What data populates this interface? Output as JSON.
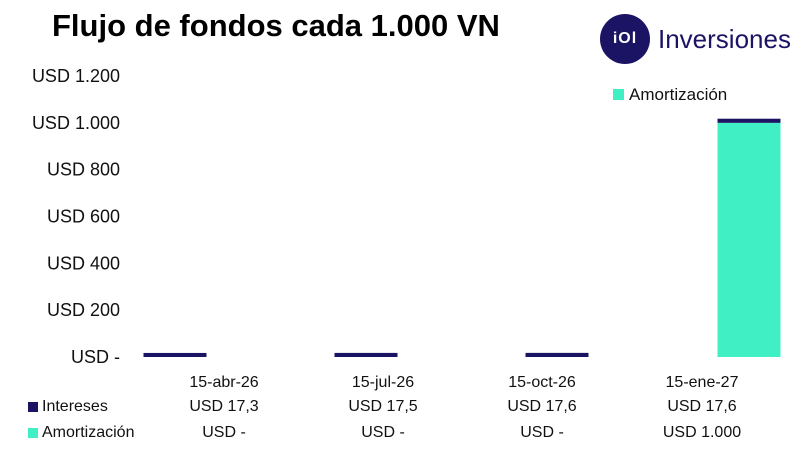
{
  "title": "Flujo de fondos cada 1.000 VN",
  "logo": {
    "mark": "iOl",
    "name": "Inversiones"
  },
  "colors": {
    "intereses": "#1b1464",
    "amortizacion": "#40efc3"
  },
  "chart_data": {
    "type": "bar",
    "stacked": true,
    "categories": [
      "15-abr-26",
      "15-jul-26",
      "15-oct-26",
      "15-ene-27"
    ],
    "series": [
      {
        "name": "Intereses",
        "values": [
          17.3,
          17.5,
          17.6,
          17.6
        ]
      },
      {
        "name": "Amortización",
        "values": [
          0,
          0,
          0,
          1000
        ]
      }
    ],
    "ylim": [
      0,
      1200
    ],
    "yticks": [
      {
        "value": 0,
        "label": "USD -"
      },
      {
        "value": 200,
        "label": "USD 200"
      },
      {
        "value": 400,
        "label": "USD 400"
      },
      {
        "value": 600,
        "label": "USD 600"
      },
      {
        "value": 800,
        "label": "USD 800"
      },
      {
        "value": 1000,
        "label": "USD 1.000"
      },
      {
        "value": 1200,
        "label": "USD 1.200"
      }
    ],
    "legend": {
      "label": "Amortización",
      "position": "top-right"
    },
    "grid": false
  },
  "table": {
    "header": [
      "15-abr-26",
      "15-jul-26",
      "15-oct-26",
      "15-ene-27"
    ],
    "rows": [
      {
        "label": "Intereses",
        "values": [
          "USD 17,3",
          "USD 17,5",
          "USD 17,6",
          "USD 17,6"
        ]
      },
      {
        "label": "Amortización",
        "values": [
          "USD -",
          "USD -",
          "USD -",
          "USD 1.000"
        ]
      }
    ]
  }
}
